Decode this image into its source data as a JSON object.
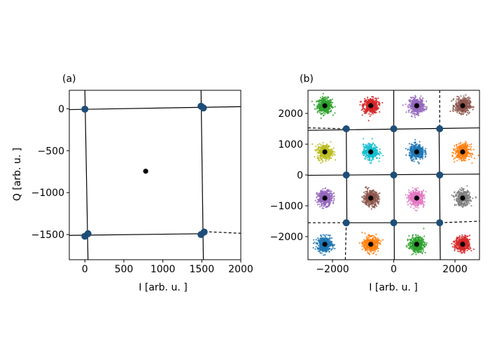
{
  "chart_data": [
    {
      "type": "scatter",
      "panel_label": "(a)",
      "xlabel": "I [arb. u. ]",
      "ylabel": "Q [arb. u. ]",
      "xlim": [
        -200,
        2000
      ],
      "ylim": [
        -1800,
        220
      ],
      "xticks": [
        0,
        500,
        1000,
        1500,
        2000
      ],
      "yticks": [
        0,
        -500,
        -1000,
        -1500
      ],
      "xtick_labels": [
        "0",
        "500",
        "1000",
        "1500",
        "2000"
      ],
      "ytick_labels": [
        "0",
        "−500",
        "−1000",
        "−1500"
      ],
      "centroid": [
        780,
        -745
      ],
      "points": [
        [
          0,
          -5
        ],
        [
          1490,
          30
        ],
        [
          1520,
          10
        ],
        [
          0,
          -1520
        ],
        [
          40,
          -1490
        ],
        [
          1490,
          -1500
        ],
        [
          1530,
          -1470
        ]
      ],
      "solid_lines": [
        [
          [
            -200,
            -10
          ],
          [
            2000,
            25
          ]
        ],
        [
          [
            -200,
            -1510
          ],
          [
            1530,
            -1490
          ]
        ],
        [
          [
            0,
            220
          ],
          [
            40,
            -1800
          ]
        ],
        [
          [
            1490,
            220
          ],
          [
            1520,
            -1800
          ]
        ]
      ],
      "dashed_lines": [
        [
          [
            1530,
            -1465
          ],
          [
            2000,
            -1485
          ]
        ]
      ]
    },
    {
      "type": "scatter",
      "panel_label": "(b)",
      "xlabel": "I [arb. u. ]",
      "ylabel": "",
      "xlim": [
        -2800,
        2800
      ],
      "ylim": [
        -2750,
        2750
      ],
      "xticks": [
        -2000,
        0,
        2000
      ],
      "yticks": [
        2000,
        1000,
        0,
        -1000,
        -2000
      ],
      "xtick_labels": [
        "−2000",
        "0",
        "2000"
      ],
      "ytick_labels": [
        "2000",
        "1000",
        "0",
        "−1000",
        "−2000"
      ],
      "clusters": [
        {
          "x": -2250,
          "y": 2250,
          "color": "#2ca02c"
        },
        {
          "x": -750,
          "y": 2250,
          "color": "#d62728"
        },
        {
          "x": 750,
          "y": 2250,
          "color": "#9467bd"
        },
        {
          "x": 2250,
          "y": 2250,
          "color": "#8c564b"
        },
        {
          "x": -2250,
          "y": 750,
          "color": "#bcbd22"
        },
        {
          "x": -750,
          "y": 750,
          "color": "#17becf"
        },
        {
          "x": 750,
          "y": 750,
          "color": "#1f77b4"
        },
        {
          "x": 2250,
          "y": 750,
          "color": "#ff7f0e"
        },
        {
          "x": -2250,
          "y": -750,
          "color": "#9467bd"
        },
        {
          "x": -750,
          "y": -750,
          "color": "#8c564b"
        },
        {
          "x": 750,
          "y": -750,
          "color": "#e377c2"
        },
        {
          "x": 2250,
          "y": -750,
          "color": "#7f7f7f"
        },
        {
          "x": -2250,
          "y": -2250,
          "color": "#1f77b4"
        },
        {
          "x": -750,
          "y": -2250,
          "color": "#ff7f0e"
        },
        {
          "x": 750,
          "y": -2250,
          "color": "#2ca02c"
        },
        {
          "x": 2250,
          "y": -2250,
          "color": "#d62728"
        }
      ],
      "points": [
        [
          -1550,
          1500
        ],
        [
          0,
          1500
        ],
        [
          1500,
          1500
        ],
        [
          -1550,
          0
        ],
        [
          0,
          0
        ],
        [
          1500,
          0
        ],
        [
          -1550,
          -1550
        ],
        [
          0,
          -1550
        ],
        [
          1500,
          -1550
        ]
      ],
      "solid_lines": [
        [
          [
            -2800,
            1450
          ],
          [
            2800,
            1530
          ]
        ],
        [
          [
            -2800,
            -10
          ],
          [
            2800,
            30
          ]
        ],
        [
          [
            -1550,
            1500
          ],
          [
            -1530,
            -1550
          ]
        ],
        [
          [
            0,
            2750
          ],
          [
            0,
            1500
          ]
        ],
        [
          [
            0,
            1500
          ],
          [
            20,
            -2750
          ]
        ],
        [
          [
            1480,
            1500
          ],
          [
            1520,
            -2750
          ]
        ],
        [
          [
            -1550,
            -1550
          ],
          [
            1500,
            -1550
          ]
        ]
      ],
      "dashed_lines": [
        [
          [
            -2800,
            1530
          ],
          [
            -1550,
            1500
          ]
        ],
        [
          [
            1500,
            2750
          ],
          [
            1500,
            1500
          ]
        ],
        [
          [
            -2800,
            -1550
          ],
          [
            -1550,
            -1550
          ]
        ],
        [
          [
            1500,
            -1550
          ],
          [
            2800,
            -1500
          ]
        ],
        [
          [
            -1550,
            -1550
          ],
          [
            -1580,
            -2750
          ]
        ]
      ]
    }
  ],
  "colors": {
    "marker": "#1f4e79",
    "marker_edge": "#184a74",
    "centroid": "#000000",
    "line": "#000000"
  }
}
